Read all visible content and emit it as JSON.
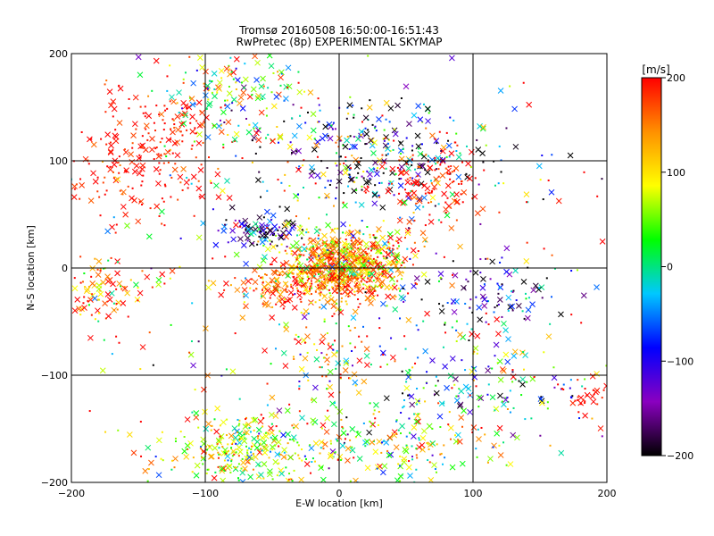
{
  "chart_data": {
    "type": "scatter",
    "title": "Tromsø 20160508 16:50:00-16:51:43",
    "subtitle": "RwPretec (8p) EXPERIMENTAL SKYMAP",
    "xlabel": "E-W location [km]",
    "ylabel": "N-S location [km]",
    "xlim": [
      -200,
      200
    ],
    "ylim": [
      -200,
      200
    ],
    "xticks": [
      "−200",
      "−100",
      "0",
      "100",
      "200"
    ],
    "yticks": [
      "200",
      "100",
      "0",
      "−100",
      "−200"
    ],
    "grid": true,
    "colorbar": {
      "unit": "[m/s]",
      "range": [
        -200,
        200
      ],
      "tick_values": [
        200,
        100,
        0,
        -100,
        -200
      ],
      "tick_labels": [
        "200",
        "100",
        "0",
        "−100",
        "−200"
      ],
      "colors": [
        "#000000",
        "#8a00c0",
        "#0000ff",
        "#00c8ff",
        "#00ff00",
        "#ffff00",
        "#ff9000",
        "#ff0000"
      ]
    },
    "markers": [
      "cross",
      "dot"
    ],
    "clusters": [
      {
        "cx": 5,
        "cy": 5,
        "sx": 22,
        "sy": 14,
        "n": 650,
        "vmean": 120,
        "vsd": 70
      },
      {
        "cx": -20,
        "cy": -15,
        "sx": 30,
        "sy": 12,
        "n": 260,
        "vmean": 170,
        "vsd": 40
      },
      {
        "cx": 30,
        "cy": 105,
        "sx": 45,
        "sy": 28,
        "n": 340,
        "vmean": -80,
        "vsd": 150
      },
      {
        "cx": 70,
        "cy": 80,
        "sx": 20,
        "sy": 20,
        "n": 120,
        "vmean": 190,
        "vsd": 25
      },
      {
        "cx": -75,
        "cy": -170,
        "sx": 30,
        "sy": 18,
        "n": 260,
        "vmean": 80,
        "vsd": 60
      },
      {
        "cx": 25,
        "cy": -165,
        "sx": 50,
        "sy": 20,
        "n": 220,
        "vmean": 60,
        "vsd": 90
      },
      {
        "cx": 110,
        "cy": -110,
        "sx": 40,
        "sy": 20,
        "n": 140,
        "vmean": -30,
        "vsd": 110
      },
      {
        "cx": -130,
        "cy": 120,
        "sx": 30,
        "sy": 30,
        "n": 160,
        "vmean": 190,
        "vsd": 20
      },
      {
        "cx": -80,
        "cy": 160,
        "sx": 30,
        "sy": 20,
        "n": 130,
        "vmean": 60,
        "vsd": 100
      },
      {
        "cx": -60,
        "cy": 35,
        "sx": 15,
        "sy": 8,
        "n": 90,
        "vmean": -150,
        "vsd": 80
      },
      {
        "cx": 110,
        "cy": -25,
        "sx": 30,
        "sy": 20,
        "n": 110,
        "vmean": -120,
        "vsd": 80
      },
      {
        "cx": -180,
        "cy": -20,
        "sx": 20,
        "sy": 15,
        "n": 100,
        "vmean": 150,
        "vsd": 70
      },
      {
        "cx": -170,
        "cy": 80,
        "sx": 25,
        "sy": 20,
        "n": 80,
        "vmean": 195,
        "vsd": 15
      },
      {
        "cx": 0,
        "cy": 0,
        "sx": 120,
        "sy": 120,
        "n": 450,
        "vmean": 80,
        "vsd": 140
      },
      {
        "cx": 185,
        "cy": -120,
        "sx": 8,
        "sy": 10,
        "n": 30,
        "vmean": 195,
        "vsd": 10
      },
      {
        "cx": -10,
        "cy": -80,
        "sx": 20,
        "sy": 30,
        "n": 90,
        "vmean": 100,
        "vsd": 120
      }
    ]
  }
}
